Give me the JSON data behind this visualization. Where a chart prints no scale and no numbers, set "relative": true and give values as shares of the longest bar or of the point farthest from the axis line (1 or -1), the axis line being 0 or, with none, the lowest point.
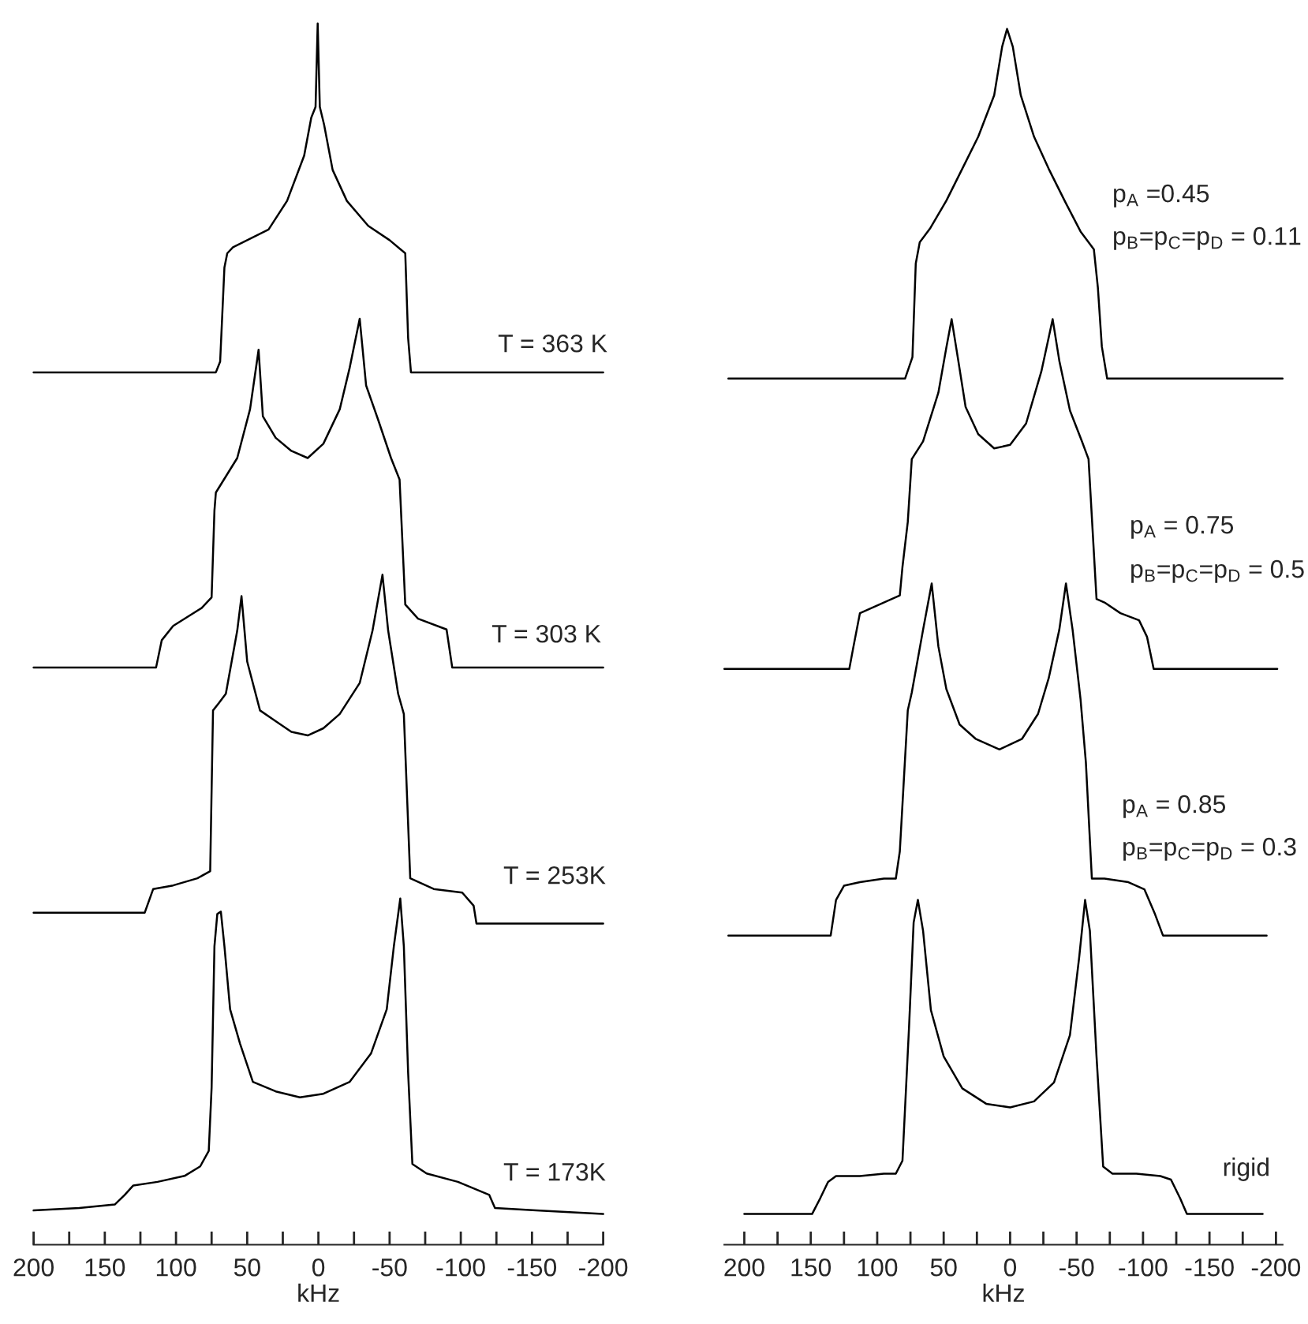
{
  "chart_data": [
    {
      "type": "line",
      "relative": true,
      "xlim": [
        200,
        -200
      ],
      "xlabel": "kHz",
      "xticks": [
        200,
        {
          "value": 175,
          "label": null
        },
        150,
        {
          "value": 125,
          "label": null
        },
        100,
        {
          "value": 75,
          "label": null
        },
        50,
        {
          "value": 25,
          "label": null
        },
        0,
        {
          "value": -25,
          "label": null
        },
        -50,
        {
          "value": -75,
          "label": null
        },
        -100,
        {
          "value": -125,
          "label": null
        },
        -150,
        {
          "value": -175,
          "label": null
        },
        -200
      ],
      "annotations": [
        "T = 363 K",
        "T = 303 K",
        "T = 253K",
        "T = 173K"
      ],
      "series": [
        {
          "color": "#000000",
          "x": [
            200,
            72,
            69,
            66,
            64,
            60,
            50,
            35,
            22,
            10,
            5,
            2,
            0.5,
            -1,
            -4,
            -10,
            -20,
            -35,
            -50,
            -58,
            -61,
            -63,
            -65,
            -70,
            -200
          ],
          "values": [
            0.707,
            0.707,
            0.716,
            0.795,
            0.807,
            0.812,
            0.818,
            0.827,
            0.851,
            0.889,
            0.921,
            0.93,
            1,
            0.93,
            0.915,
            0.877,
            0.851,
            0.83,
            0.818,
            0.81,
            0.807,
            0.736,
            0.707,
            0.707,
            0.707
          ]
        },
        {
          "color": "#000000",
          "x": [
            200,
            114,
            110,
            102,
            82,
            75,
            73,
            72,
            57,
            48,
            42,
            39,
            30,
            19,
            7.5,
            -3.5,
            -15,
            -22,
            -29,
            -33.5,
            -42,
            -51,
            -57,
            -61,
            -70,
            -90,
            -94,
            -200
          ],
          "values": [
            0.459,
            0.459,
            0.482,
            0.494,
            0.509,
            0.518,
            0.591,
            0.606,
            0.635,
            0.676,
            0.726,
            0.67,
            0.652,
            0.641,
            0.635,
            0.647,
            0.676,
            0.711,
            0.752,
            0.696,
            0.667,
            0.635,
            0.617,
            0.512,
            0.5,
            0.491,
            0.459,
            0.459
          ]
        },
        {
          "color": "#000000",
          "x": [
            200,
            122,
            116,
            102,
            85,
            76,
            74,
            70,
            65,
            57,
            54,
            50,
            41,
            30,
            19,
            7.5,
            -3.5,
            -15,
            -29,
            -38,
            -45,
            -49,
            -56,
            -60,
            -64.5,
            -81,
            -101,
            -109,
            -111,
            -200
          ],
          "values": [
            0.253,
            0.253,
            0.273,
            0.276,
            0.282,
            0.288,
            0.423,
            0.429,
            0.437,
            0.49,
            0.519,
            0.464,
            0.423,
            0.414,
            0.405,
            0.402,
            0.408,
            0.42,
            0.446,
            0.49,
            0.537,
            0.49,
            0.437,
            0.42,
            0.282,
            0.273,
            0.27,
            0.259,
            0.244,
            0.244
          ]
        },
        {
          "color": "#000000",
          "x": [
            200,
            168,
            143,
            136,
            130,
            113,
            94,
            83,
            77,
            75,
            73,
            71,
            68.5,
            66,
            62,
            55,
            46,
            30,
            13,
            -3.5,
            -22,
            -37,
            -48,
            -53,
            -57.5,
            -60,
            -63,
            -66,
            -76,
            -98,
            -120,
            -124,
            -153,
            -200
          ],
          "values": [
            0.003,
            0.005,
            0.008,
            0.016,
            0.024,
            0.027,
            0.032,
            0.04,
            0.053,
            0.106,
            0.225,
            0.252,
            0.254,
            0.225,
            0.172,
            0.143,
            0.111,
            0.103,
            0.098,
            0.101,
            0.111,
            0.135,
            0.172,
            0.225,
            0.265,
            0.225,
            0.119,
            0.042,
            0.034,
            0.027,
            0.016,
            0.005,
            0.003,
            0
          ]
        }
      ]
    },
    {
      "type": "line",
      "relative": true,
      "xlim": [
        215,
        -205
      ],
      "xlabel": "kHz",
      "xticks": [
        200,
        {
          "value": 175,
          "label": null
        },
        150,
        {
          "value": 125,
          "label": null
        },
        100,
        {
          "value": 75,
          "label": null
        },
        50,
        {
          "value": 25,
          "label": null
        },
        0,
        {
          "value": -25,
          "label": null
        },
        -50,
        {
          "value": -75,
          "label": null
        },
        -100,
        {
          "value": -125,
          "label": null
        },
        -150,
        {
          "value": -175,
          "label": null
        },
        -200
      ],
      "annotations": [
        "p$_{A}$ =0.45",
        "p$_{B}$=p$_{C}$=p$_{D}$ = 0.11",
        "p$_{A}$ = 0.75",
        "p$_{B}$=p$_{C}$=p$_{D}$ = 0.5",
        "p$_{A}$ = 0.85",
        "p$_{B}$=p$_{C}$=p$_{D}$ = 0.3",
        "rigid"
      ],
      "series": [
        {
          "color": "#000000",
          "x": [
            212,
            79,
            73.5,
            71,
            68,
            60,
            48,
            36,
            24,
            12,
            6,
            2.3,
            -2,
            -8,
            -18,
            -29,
            -41,
            -53,
            -63,
            -66,
            -69,
            -73,
            -205
          ],
          "values": [
            0.705,
            0.705,
            0.723,
            0.802,
            0.82,
            0.832,
            0.855,
            0.882,
            0.909,
            0.944,
            0.985,
            1,
            0.985,
            0.944,
            0.909,
            0.882,
            0.855,
            0.829,
            0.814,
            0.782,
            0.732,
            0.705,
            0.705
          ]
        },
        {
          "color": "#000000",
          "x": [
            215,
            121,
            118,
            113,
            107,
            95,
            83,
            81,
            77,
            74,
            65.5,
            54,
            48,
            44,
            39,
            33.5,
            24,
            12,
            0,
            -12,
            -23.5,
            -32,
            -37,
            -45,
            -54,
            -59,
            -65,
            -71,
            -83,
            -97,
            -103,
            -108,
            -201
          ],
          "values": [
            0.46,
            0.46,
            0.478,
            0.507,
            0.51,
            0.516,
            0.522,
            0.546,
            0.584,
            0.637,
            0.652,
            0.693,
            0.731,
            0.755,
            0.72,
            0.681,
            0.658,
            0.646,
            0.649,
            0.667,
            0.711,
            0.755,
            0.72,
            0.678,
            0.652,
            0.637,
            0.519,
            0.516,
            0.507,
            0.501,
            0.487,
            0.46,
            0.46
          ]
        },
        {
          "color": "#000000",
          "x": [
            212,
            135,
            131,
            125,
            113,
            95,
            86,
            83,
            77,
            74,
            65.5,
            59,
            54,
            48,
            38,
            26,
            8,
            -9,
            -21,
            -29,
            -37,
            -42,
            -47,
            -53,
            -57,
            -61.5,
            -71,
            -89,
            -101,
            -109,
            -115,
            -193
          ],
          "values": [
            0.235,
            0.235,
            0.265,
            0.277,
            0.28,
            0.283,
            0.283,
            0.306,
            0.425,
            0.44,
            0.493,
            0.532,
            0.479,
            0.443,
            0.413,
            0.401,
            0.392,
            0.401,
            0.422,
            0.452,
            0.493,
            0.532,
            0.493,
            0.434,
            0.381,
            0.283,
            0.283,
            0.28,
            0.274,
            0.253,
            0.235,
            0.235
          ]
        },
        {
          "color": "#000000",
          "x": [
            200,
            149,
            143,
            137,
            131,
            113,
            95,
            86,
            81,
            76,
            72.6,
            69.4,
            65.5,
            59.6,
            50,
            36,
            18,
            0,
            -18,
            -33,
            -45,
            -52,
            -56.4,
            -60,
            -65,
            -70,
            -77,
            -95,
            -113,
            -121,
            -128,
            -133,
            -190
          ],
          "values": [
            0,
            0,
            0.013,
            0.027,
            0.032,
            0.032,
            0.034,
            0.034,
            0.045,
            0.159,
            0.246,
            0.265,
            0.239,
            0.172,
            0.133,
            0.106,
            0.093,
            0.09,
            0.095,
            0.111,
            0.151,
            0.217,
            0.265,
            0.239,
            0.133,
            0.04,
            0.034,
            0.034,
            0.032,
            0.029,
            0.013,
            0,
            0
          ]
        }
      ]
    }
  ]
}
